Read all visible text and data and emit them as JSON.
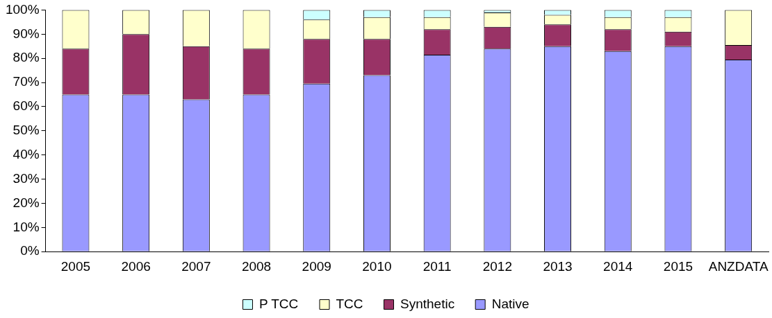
{
  "chart_data": {
    "type": "bar",
    "stacked": true,
    "categories": [
      "2005",
      "2006",
      "2007",
      "2008",
      "2009",
      "2010",
      "2011",
      "2012",
      "2013",
      "2014",
      "2015",
      "ANZDATA"
    ],
    "series": [
      {
        "name": "Native",
        "color": "#9999ff",
        "values": [
          65,
          65,
          63,
          65,
          69.5,
          73,
          81.5,
          84,
          85,
          83,
          85,
          79.5
        ]
      },
      {
        "name": "Synthetic",
        "color": "#993366",
        "values": [
          19,
          25,
          22,
          19,
          18.5,
          15,
          10.5,
          9,
          9,
          9,
          6,
          6
        ]
      },
      {
        "name": "TCC",
        "color": "#ffffcc",
        "values": [
          16,
          10,
          15,
          16,
          8,
          9,
          5,
          6,
          4,
          5,
          6,
          14.5
        ]
      },
      {
        "name": "P TCC",
        "color": "#ccffff",
        "values": [
          0,
          0,
          0,
          0,
          4,
          3,
          3,
          1,
          2,
          3,
          3,
          0
        ]
      }
    ],
    "ylim": [
      0,
      100
    ],
    "yticks": [
      {
        "value": 0,
        "label": "0%"
      },
      {
        "value": 10,
        "label": "10%"
      },
      {
        "value": 20,
        "label": "20%"
      },
      {
        "value": 30,
        "label": "30%"
      },
      {
        "value": 40,
        "label": "40%"
      },
      {
        "value": 50,
        "label": "50%"
      },
      {
        "value": 60,
        "label": "60%"
      },
      {
        "value": 70,
        "label": "70%"
      },
      {
        "value": 80,
        "label": "80%"
      },
      {
        "value": 90,
        "label": "90%"
      },
      {
        "value": 100,
        "label": "100%"
      }
    ],
    "grid": false,
    "legend": "bottom"
  }
}
